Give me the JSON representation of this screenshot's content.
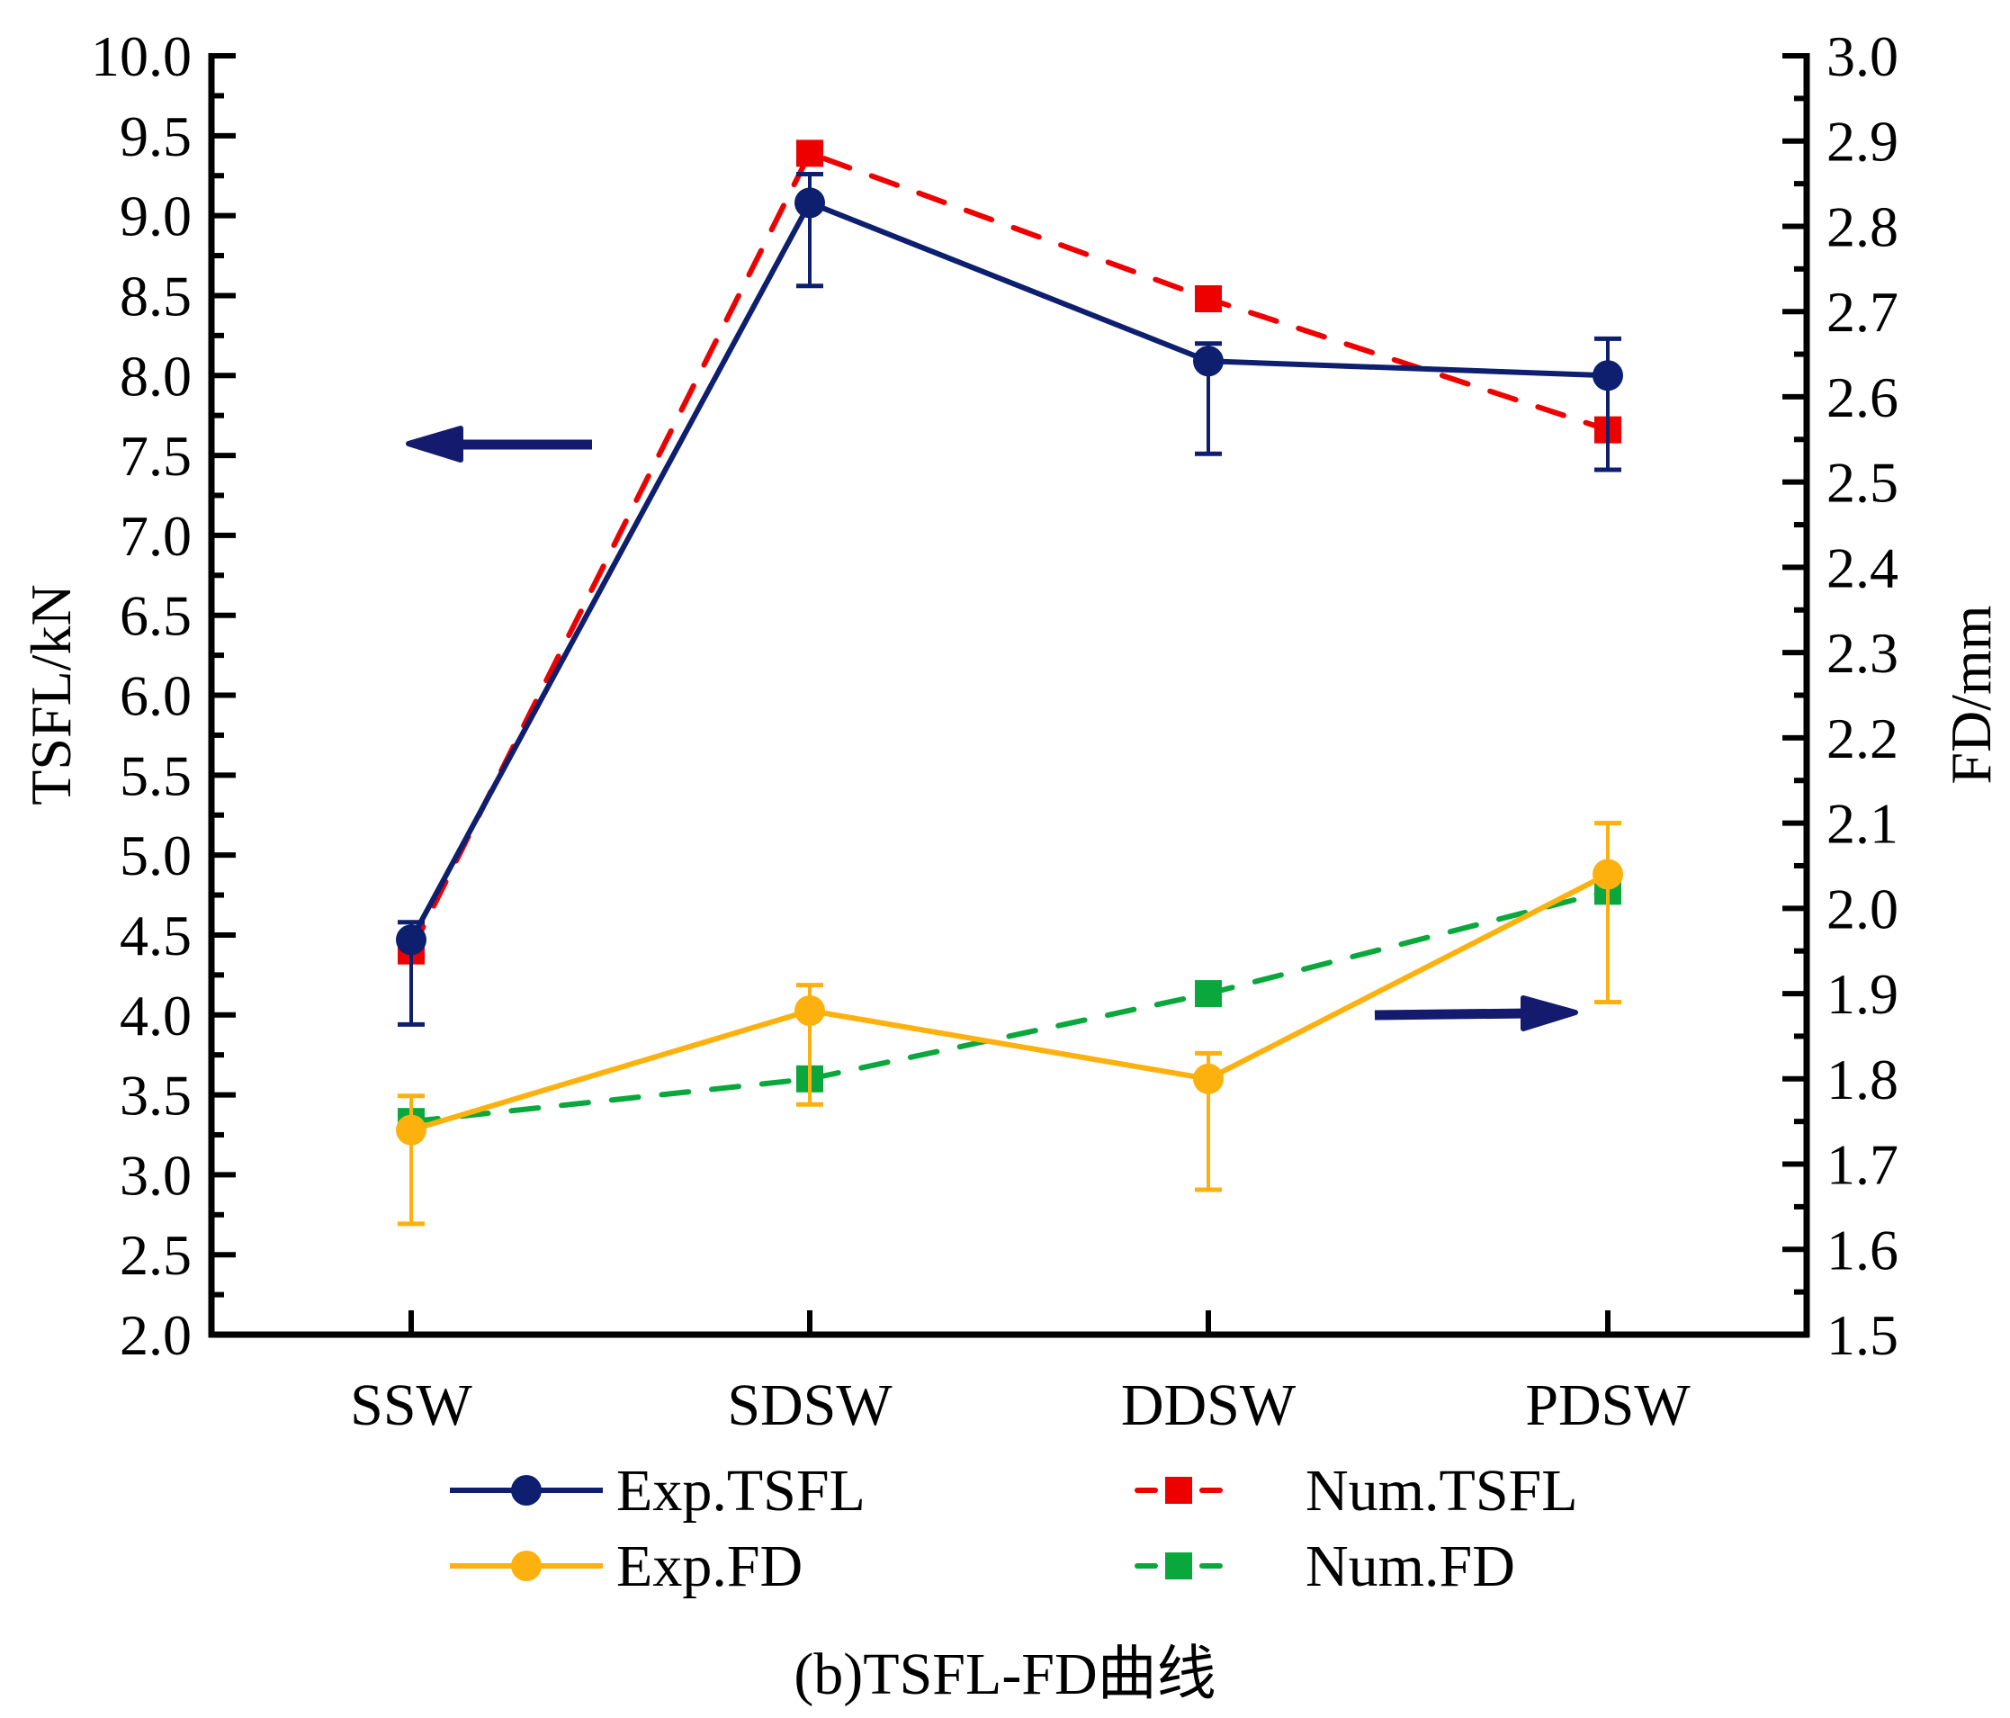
{
  "chart_data": {
    "type": "line",
    "title": "",
    "caption": "(b)TSFL-FD曲线",
    "categories": [
      "SSW",
      "SDSW",
      "DDSW",
      "PDSW"
    ],
    "xlabel": "",
    "ylabel": "TSFL/kN",
    "ylabel_right": "FD/mm",
    "ylim": [
      2.0,
      10.0
    ],
    "ylim_right": [
      1.5,
      3.0
    ],
    "y_major_step": 0.5,
    "y_right_major_step": 0.1,
    "y_ticks": [
      "2.0",
      "2.5",
      "3.0",
      "3.5",
      "4.0",
      "4.5",
      "5.0",
      "5.5",
      "6.0",
      "6.5",
      "7.0",
      "7.5",
      "8.0",
      "8.5",
      "9.0",
      "9.5",
      "10.0"
    ],
    "y_right_ticks": [
      "1.5",
      "1.6",
      "1.7",
      "1.8",
      "1.9",
      "2.0",
      "2.1",
      "2.2",
      "2.3",
      "2.4",
      "2.5",
      "2.6",
      "2.7",
      "2.8",
      "2.9",
      "3.0"
    ],
    "grid": false,
    "legend_position": "bottom",
    "series": [
      {
        "name": "Exp.TSFL",
        "axis": "left",
        "color": "#0d1f6e",
        "line": "solid",
        "marker": "circle",
        "values": [
          4.47,
          9.08,
          8.09,
          8.0
        ],
        "error_upper": [
          4.58,
          9.26,
          8.2,
          8.23
        ],
        "error_lower": [
          3.94,
          8.56,
          7.51,
          7.41
        ]
      },
      {
        "name": "Num.TSFL",
        "axis": "left",
        "color": "#ee0000",
        "line": "dashed",
        "marker": "square",
        "values": [
          4.4,
          9.39,
          8.48,
          7.66
        ]
      },
      {
        "name": "Exp.FD",
        "axis": "right",
        "color": "#fdb10f",
        "line": "solid",
        "marker": "circle",
        "values": [
          1.74,
          1.88,
          1.8,
          2.04
        ],
        "error_upper": [
          1.78,
          1.91,
          1.83,
          2.1
        ],
        "error_lower": [
          1.63,
          1.77,
          1.67,
          1.89
        ]
      },
      {
        "name": "Num.FD",
        "axis": "right",
        "color": "#0aa83c",
        "line": "dashed",
        "marker": "square",
        "values": [
          1.75,
          1.8,
          1.9,
          2.02
        ]
      }
    ],
    "annotations": [
      {
        "type": "arrow",
        "direction": "left",
        "meaning": "Exp/Num TSFL read on left axis",
        "color": "#141a6e"
      },
      {
        "type": "arrow",
        "direction": "right",
        "meaning": "Exp/Num FD read on right axis",
        "color": "#141a6e"
      }
    ]
  }
}
